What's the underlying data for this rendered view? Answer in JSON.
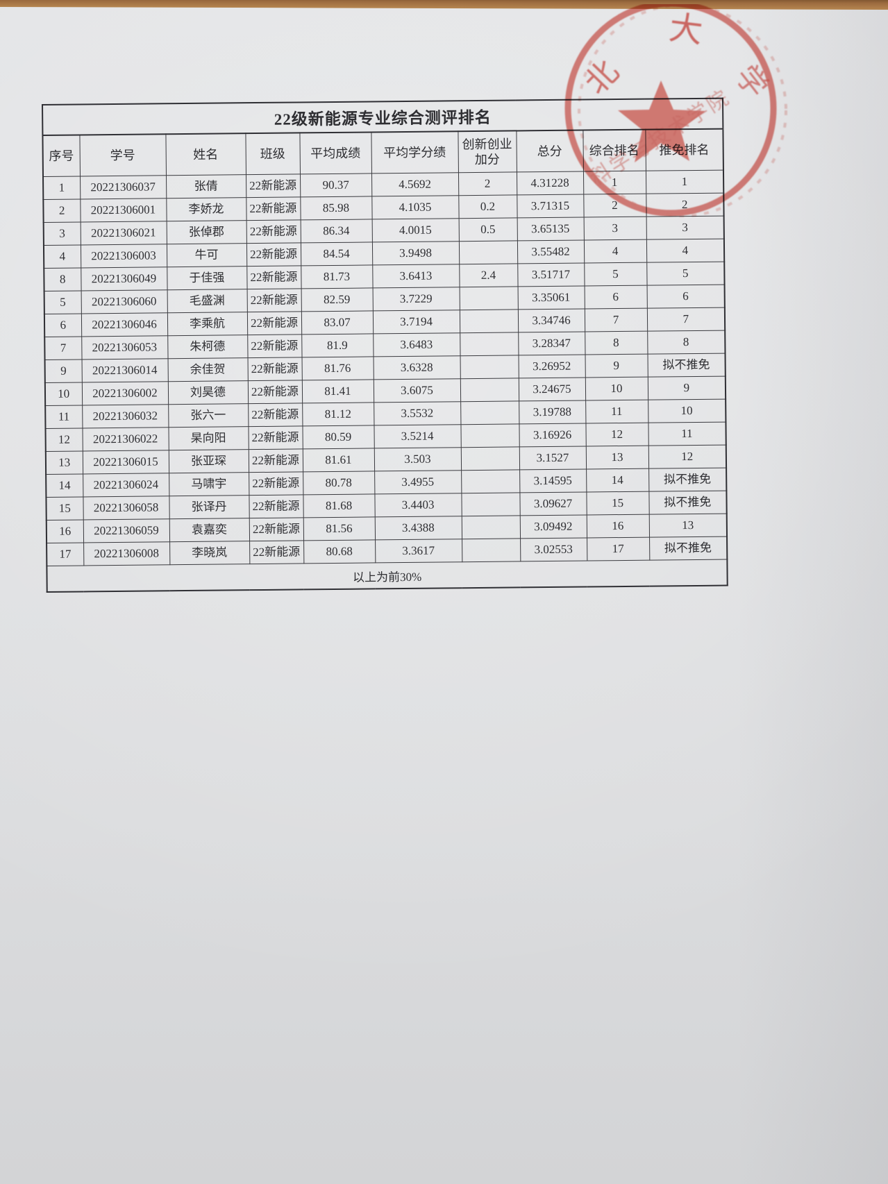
{
  "page": {
    "paper_color": "#e2e3e5",
    "desk_color": "#9c6b3f",
    "ink_color": "#2e2e32",
    "stamp_color": "#d9544a"
  },
  "document": {
    "title": "22级新能源专业综合测评排名",
    "columns": [
      "序号",
      "学号",
      "姓名",
      "班级",
      "平均成绩",
      "平均学分绩",
      "创新创业加分",
      "总分",
      "综合排名",
      "推免排名"
    ],
    "rows": [
      [
        "1",
        "20221306037",
        "张倩",
        "22新能源",
        "90.37",
        "4.5692",
        "2",
        "4.31228",
        "1",
        "1"
      ],
      [
        "2",
        "20221306001",
        "李娇龙",
        "22新能源",
        "85.98",
        "4.1035",
        "0.2",
        "3.71315",
        "2",
        "2"
      ],
      [
        "3",
        "20221306021",
        "张倬郡",
        "22新能源",
        "86.34",
        "4.0015",
        "0.5",
        "3.65135",
        "3",
        "3"
      ],
      [
        "4",
        "20221306003",
        "牛可",
        "22新能源",
        "84.54",
        "3.9498",
        "",
        "3.55482",
        "4",
        "4"
      ],
      [
        "8",
        "20221306049",
        "于佳强",
        "22新能源",
        "81.73",
        "3.6413",
        "2.4",
        "3.51717",
        "5",
        "5"
      ],
      [
        "5",
        "20221306060",
        "毛盛渊",
        "22新能源",
        "82.59",
        "3.7229",
        "",
        "3.35061",
        "6",
        "6"
      ],
      [
        "6",
        "20221306046",
        "李乘航",
        "22新能源",
        "83.07",
        "3.7194",
        "",
        "3.34746",
        "7",
        "7"
      ],
      [
        "7",
        "20221306053",
        "朱柯德",
        "22新能源",
        "81.9",
        "3.6483",
        "",
        "3.28347",
        "8",
        "8"
      ],
      [
        "9",
        "20221306014",
        "余佳贺",
        "22新能源",
        "81.76",
        "3.6328",
        "",
        "3.26952",
        "9",
        "拟不推免"
      ],
      [
        "10",
        "20221306002",
        "刘昊德",
        "22新能源",
        "81.41",
        "3.6075",
        "",
        "3.24675",
        "10",
        "9"
      ],
      [
        "11",
        "20221306032",
        "张六一",
        "22新能源",
        "81.12",
        "3.5532",
        "",
        "3.19788",
        "11",
        "10"
      ],
      [
        "12",
        "20221306022",
        "杲向阳",
        "22新能源",
        "80.59",
        "3.5214",
        "",
        "3.16926",
        "12",
        "11"
      ],
      [
        "13",
        "20221306015",
        "张亚琛",
        "22新能源",
        "81.61",
        "3.503",
        "",
        "3.1527",
        "13",
        "12"
      ],
      [
        "14",
        "20221306024",
        "马啸宇",
        "22新能源",
        "80.78",
        "3.4955",
        "",
        "3.14595",
        "14",
        "拟不推免"
      ],
      [
        "15",
        "20221306058",
        "张译丹",
        "22新能源",
        "81.68",
        "3.4403",
        "",
        "3.09627",
        "15",
        "拟不推免"
      ],
      [
        "16",
        "20221306059",
        "袁嘉奕",
        "22新能源",
        "81.56",
        "3.4388",
        "",
        "3.09492",
        "16",
        "13"
      ],
      [
        "17",
        "20221306008",
        "李晓岚",
        "22新能源",
        "80.68",
        "3.3617",
        "",
        "3.02553",
        "17",
        "拟不推免"
      ]
    ],
    "footer": "以上为前30%"
  },
  "stamp": {
    "ring_text": [
      "北",
      "大",
      "学"
    ],
    "inner_text": "科学与技术学院",
    "shape": "red-star-seal"
  }
}
